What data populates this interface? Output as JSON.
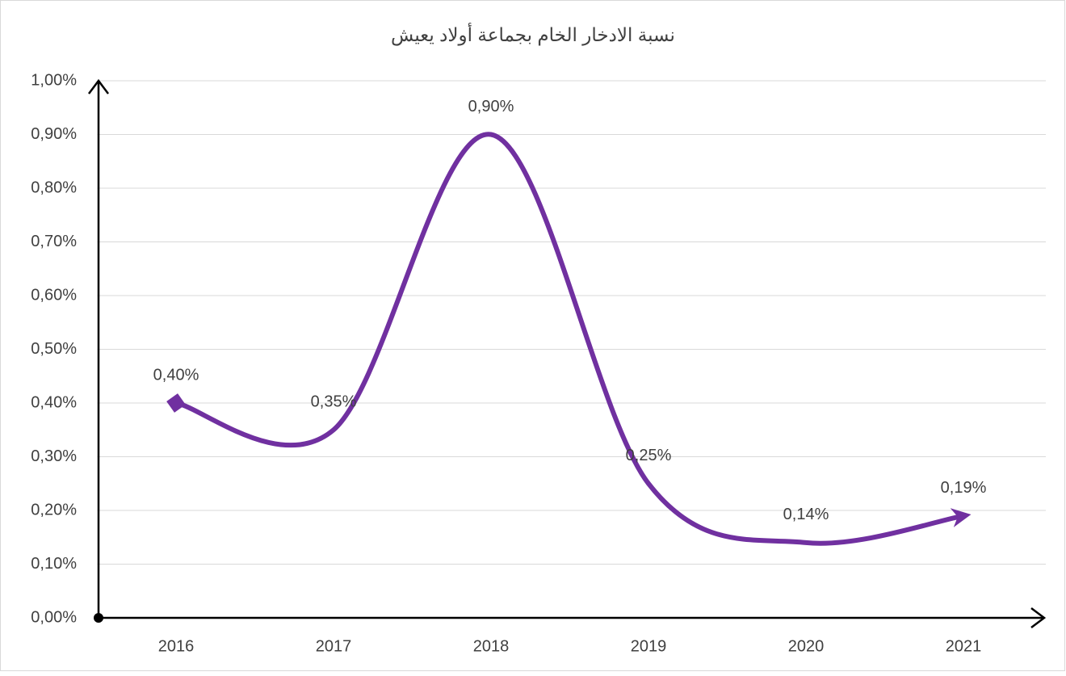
{
  "chart_data": {
    "type": "line",
    "title": "نسبة الادخار الخام بجماعة أولاد يعيش",
    "categories": [
      "2016",
      "2017",
      "2018",
      "2019",
      "2020",
      "2021"
    ],
    "series": [
      {
        "name": "نسبة الادخار الخام",
        "color": "#7030a0",
        "values": [
          0.4,
          0.35,
          0.9,
          0.25,
          0.14,
          0.19
        ],
        "value_labels": [
          "0,40%",
          "0,35%",
          "0,90%",
          "0,25%",
          "0,14%",
          "0,19%"
        ]
      }
    ],
    "ylim": [
      0,
      1.0
    ],
    "yticks": [
      {
        "value": 0,
        "label": "0,00%"
      },
      {
        "value": 0.1,
        "label": "0,10%"
      },
      {
        "value": 0.2,
        "label": "0,20%"
      },
      {
        "value": 0.3,
        "label": "0,30%"
      },
      {
        "value": 0.4,
        "label": "0,40%"
      },
      {
        "value": 0.5,
        "label": "0,50%"
      },
      {
        "value": 0.6,
        "label": "0,60%"
      },
      {
        "value": 0.7,
        "label": "0,70%"
      },
      {
        "value": 0.8,
        "label": "0,80%"
      },
      {
        "value": 0.9,
        "label": "0,90%"
      },
      {
        "value": 1.0,
        "label": "1,00%"
      }
    ],
    "grid": true,
    "smooth": true
  }
}
